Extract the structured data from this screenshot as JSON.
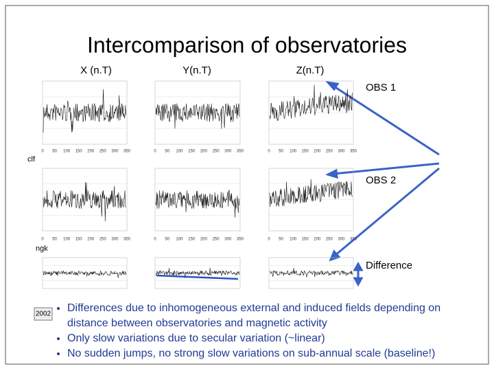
{
  "title": "Intercomparison of observatories",
  "columns": [
    "X (n.T)",
    "Y(n.T)",
    "Z(n.T)"
  ],
  "rows": [
    "OBS 1",
    "OBS 2",
    "Difference"
  ],
  "station_labels": [
    "clf",
    "ngk"
  ],
  "x_ticks": [
    0,
    50,
    100,
    150,
    200,
    250,
    300,
    350
  ],
  "logo": "2002",
  "bullets": [
    "Differences due to inhomogeneous external and induced fields depending on distance between observatories and magnetic activity",
    "Only slow variations due to secular variation (~linear)",
    "No sudden jumps, no strong slow variations on sub-annual scale (baseline!)"
  ]
}
